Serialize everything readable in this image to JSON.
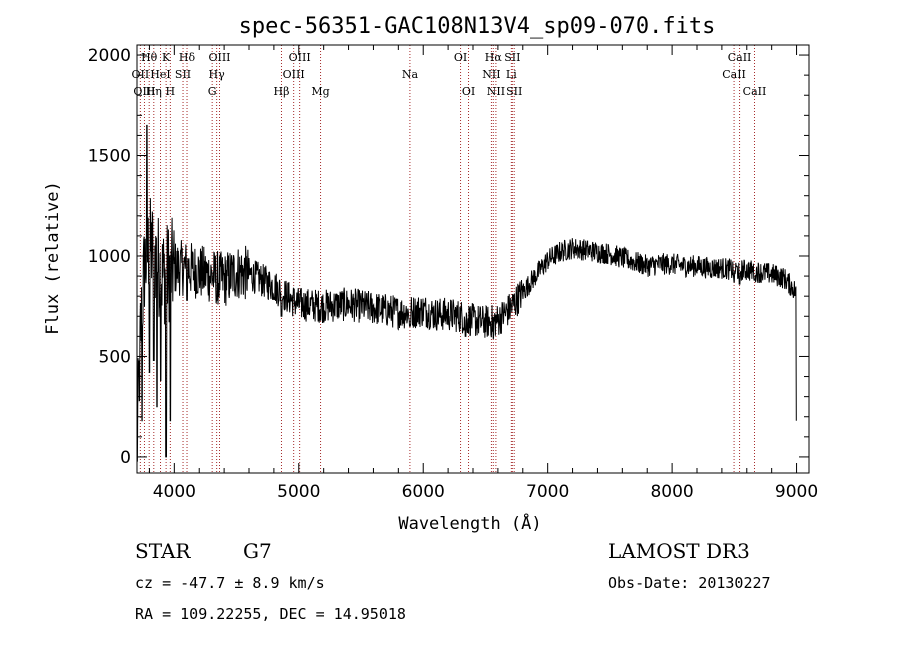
{
  "chart_data": {
    "type": "line",
    "title": "spec-56351-GAC108N13V4_sp09-070.fits",
    "xlabel": "Wavelength (Å)",
    "ylabel": "Flux (relative)",
    "xlim": [
      3700,
      9100
    ],
    "ylim": [
      -80,
      2050
    ],
    "xticks": [
      4000,
      5000,
      6000,
      7000,
      8000,
      9000
    ],
    "yticks": [
      0,
      500,
      1000,
      1500,
      2000
    ],
    "grid": false,
    "series": [
      {
        "name": "flux",
        "continuum": [
          [
            3700,
            0
          ],
          [
            3720,
            520
          ],
          [
            3760,
            950
          ],
          [
            3800,
            1050
          ],
          [
            3850,
            1000
          ],
          [
            3900,
            900
          ],
          [
            3950,
            920
          ],
          [
            4000,
            940
          ],
          [
            4100,
            940
          ],
          [
            4200,
            920
          ],
          [
            4300,
            900
          ],
          [
            4400,
            880
          ],
          [
            4500,
            920
          ],
          [
            4600,
            910
          ],
          [
            4700,
            880
          ],
          [
            4800,
            850
          ],
          [
            4900,
            800
          ],
          [
            5000,
            760
          ],
          [
            5200,
            750
          ],
          [
            5400,
            760
          ],
          [
            5600,
            740
          ],
          [
            5800,
            720
          ],
          [
            5900,
            720
          ],
          [
            6000,
            730
          ],
          [
            6100,
            710
          ],
          [
            6200,
            710
          ],
          [
            6300,
            700
          ],
          [
            6400,
            680
          ],
          [
            6500,
            670
          ],
          [
            6600,
            680
          ],
          [
            6700,
            740
          ],
          [
            6800,
            820
          ],
          [
            6900,
            900
          ],
          [
            7000,
            980
          ],
          [
            7100,
            1020
          ],
          [
            7200,
            1040
          ],
          [
            7300,
            1030
          ],
          [
            7400,
            1020
          ],
          [
            7500,
            1010
          ],
          [
            7600,
            990
          ],
          [
            7700,
            970
          ],
          [
            7800,
            950
          ],
          [
            7900,
            960
          ],
          [
            8000,
            960
          ],
          [
            8100,
            950
          ],
          [
            8200,
            950
          ],
          [
            8300,
            940
          ],
          [
            8400,
            940
          ],
          [
            8500,
            930
          ],
          [
            8600,
            930
          ],
          [
            8700,
            920
          ],
          [
            8800,
            910
          ],
          [
            8900,
            890
          ],
          [
            9000,
            820
          ]
        ],
        "features": [
          [
            3720,
            280
          ],
          [
            3740,
            180
          ],
          [
            3780,
            1650
          ],
          [
            3800,
            420
          ],
          [
            3835,
            480
          ],
          [
            3860,
            250
          ],
          [
            3890,
            380
          ],
          [
            3934,
            0
          ],
          [
            3968,
            180
          ],
          [
            4102,
            780
          ],
          [
            4340,
            780
          ],
          [
            4861,
            700
          ],
          [
            5175,
            680
          ],
          [
            5893,
            650
          ],
          [
            6340,
            600
          ],
          [
            6563,
            590
          ],
          [
            8498,
            870
          ],
          [
            8542,
            860
          ],
          [
            8662,
            880
          ],
          [
            9000,
            180
          ]
        ]
      }
    ],
    "annotations": {
      "lines": [
        {
          "label": "Hθ",
          "wavelength": 3798,
          "row": 1
        },
        {
          "label": "OII",
          "wavelength": 3727,
          "row": 2
        },
        {
          "label": "OIII",
          "wavelength": 3760,
          "row": 3
        },
        {
          "label": "K",
          "wavelength": 3934,
          "row": 1
        },
        {
          "label": "HeI",
          "wavelength": 3889,
          "row": 2
        },
        {
          "label": "Hη",
          "wavelength": 3835,
          "row": 3
        },
        {
          "label": "Hδ",
          "wavelength": 4102,
          "row": 1
        },
        {
          "label": "SII",
          "wavelength": 4070,
          "row": 2
        },
        {
          "label": "H",
          "wavelength": 3968,
          "row": 3
        },
        {
          "label": "OIII",
          "wavelength": 4363,
          "row": 1
        },
        {
          "label": "Hγ",
          "wavelength": 4340,
          "row": 2
        },
        {
          "label": "G",
          "wavelength": 4304,
          "row": 3
        },
        {
          "label": "OIII",
          "wavelength": 5007,
          "row": 1
        },
        {
          "label": "OIII",
          "wavelength": 4959,
          "row": 2
        },
        {
          "label": "Hβ",
          "wavelength": 4861,
          "row": 3
        },
        {
          "label": "Mg",
          "wavelength": 5175,
          "row": 3
        },
        {
          "label": "Na",
          "wavelength": 5893,
          "row": 2
        },
        {
          "label": "OI",
          "wavelength": 6300,
          "row": 1
        },
        {
          "label": "OI",
          "wavelength": 6364,
          "row": 3
        },
        {
          "label": "Hα",
          "wavelength": 6563,
          "row": 1
        },
        {
          "label": "SII",
          "wavelength": 6716,
          "row": 1
        },
        {
          "label": "NII",
          "wavelength": 6548,
          "row": 2
        },
        {
          "label": "Li",
          "wavelength": 6708,
          "row": 2
        },
        {
          "label": "NII",
          "wavelength": 6584,
          "row": 3
        },
        {
          "label": "SII",
          "wavelength": 6731,
          "row": 3
        },
        {
          "label": "CaII",
          "wavelength": 8542,
          "row": 1
        },
        {
          "label": "CaII",
          "wavelength": 8498,
          "row": 2
        },
        {
          "label": "CaII",
          "wavelength": 8662,
          "row": 3
        }
      ],
      "line_color": "#a52a2a"
    }
  },
  "info": {
    "object_class": "STAR",
    "subclass": "G7",
    "survey": "LAMOST DR3",
    "redshift": "cz = -47.7 ± 8.9 km/s",
    "obs_date": "Obs-Date: 20130227",
    "coords": "RA = 109.22255, DEC =  14.95018"
  }
}
